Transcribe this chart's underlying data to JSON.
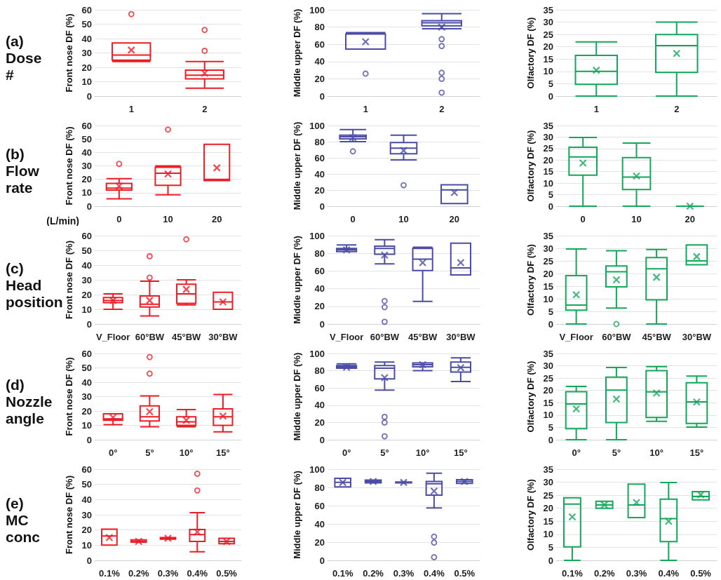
{
  "chart_data": [
    {
      "type": "box",
      "annotations": [
        "(a)\nDose\n#"
      ],
      "ylabel": "Front nose DF (%)",
      "categories": [
        "1",
        "2"
      ],
      "ylim": [
        0,
        60
      ],
      "yticks": [
        0,
        10,
        20,
        30,
        40,
        50,
        60
      ],
      "grid": "y",
      "marker": "cross",
      "series": [
        {
          "color": "#ee1c25",
          "boxes": [
            {
              "low": 24,
              "q1": 25,
              "median": 28.5,
              "q3": 37,
              "high": 37,
              "mean": 32,
              "outliers": [
                57
              ]
            },
            {
              "low": 5.5,
              "q1": 12,
              "median": 14.5,
              "q3": 18,
              "high": 24,
              "mean": 16,
              "outliers": [
                31.5,
                46
              ]
            }
          ]
        }
      ]
    },
    {
      "type": "box",
      "ylabel": "Middle upper DF (%)",
      "categories": [
        "1",
        "2"
      ],
      "ylim": [
        0,
        100
      ],
      "yticks": [
        0,
        20,
        40,
        60,
        80,
        100
      ],
      "grid": "y",
      "marker": "cross",
      "series": [
        {
          "color": "#4b4ba8",
          "boxes": [
            {
              "low": 54.5,
              "q1": 54.5,
              "median": 72,
              "q3": 72,
              "high": 73.5,
              "mean": 63,
              "outliers": [
                26
              ]
            },
            {
              "low": 78,
              "q1": 81.5,
              "median": 85,
              "q3": 87.5,
              "high": 95.5,
              "mean": 80,
              "outliers": [
                66,
                58,
                27,
                20,
                4
              ]
            }
          ]
        }
      ]
    },
    {
      "type": "box",
      "ylabel": "Olfactory DF (%)",
      "categories": [
        "1",
        "2"
      ],
      "ylim": [
        0,
        35
      ],
      "yticks": [
        0,
        5,
        10,
        15,
        20,
        25,
        30,
        35
      ],
      "grid": "y",
      "marker": "cross",
      "series": [
        {
          "color": "#12a85a",
          "boxes": [
            {
              "low": 0,
              "q1": 4.8,
              "median": 10,
              "q3": 16.5,
              "high": 22,
              "mean": 10.5
            },
            {
              "low": 0,
              "q1": 9.6,
              "median": 20.5,
              "q3": 25,
              "high": 30,
              "mean": 17.3
            }
          ]
        }
      ]
    },
    {
      "type": "box",
      "annotations": [
        "(b)\nFlow\nrate"
      ],
      "xlabel": "(L/min)",
      "ylabel": "Front nose DF (%)",
      "categories": [
        "0",
        "10",
        "20"
      ],
      "ylim": [
        0,
        60
      ],
      "yticks": [
        0,
        10,
        20,
        30,
        40,
        50,
        60
      ],
      "grid": "y",
      "marker": "cross",
      "series": [
        {
          "color": "#ee1c25",
          "boxes": [
            {
              "low": 5.5,
              "q1": 12,
              "median": 13.5,
              "q3": 17,
              "high": 20.5,
              "mean": 15,
              "outliers": [
                31.5
              ]
            },
            {
              "low": 8.5,
              "q1": 15.5,
              "median": 24.5,
              "q3": 29,
              "high": 30,
              "mean": 24,
              "outliers": [
                57
              ]
            },
            {
              "low": 19,
              "q1": 19,
              "median": 20,
              "q3": 46,
              "high": 46,
              "mean": 28.5
            }
          ]
        }
      ]
    },
    {
      "type": "box",
      "ylabel": "Middle upper DF (%)",
      "categories": [
        "0",
        "10",
        "20"
      ],
      "ylim": [
        0,
        100
      ],
      "yticks": [
        0,
        20,
        40,
        60,
        80,
        100
      ],
      "grid": "y",
      "marker": "cross",
      "series": [
        {
          "color": "#4b4ba8",
          "boxes": [
            {
              "low": 80,
              "q1": 83.5,
              "median": 86,
              "q3": 88,
              "high": 95,
              "mean": 85,
              "outliers": [
                68
              ]
            },
            {
              "low": 57.5,
              "q1": 65,
              "median": 72,
              "q3": 79,
              "high": 88,
              "mean": 69,
              "outliers": [
                26
              ]
            },
            {
              "low": 3.3,
              "q1": 3.3,
              "median": 20.3,
              "q3": 26.5,
              "high": 26.5,
              "mean": 17
            }
          ]
        }
      ]
    },
    {
      "type": "box",
      "ylabel": "Olfactory DF (%)",
      "categories": [
        "0",
        "10",
        "20"
      ],
      "ylim": [
        0,
        35
      ],
      "yticks": [
        0,
        5,
        10,
        15,
        20,
        25,
        30,
        35
      ],
      "grid": "y",
      "marker": "cross",
      "series": [
        {
          "color": "#12a85a",
          "boxes": [
            {
              "low": 0,
              "q1": 13.5,
              "median": 21.4,
              "q3": 25.6,
              "high": 29.8,
              "mean": 18.7
            },
            {
              "low": 0,
              "q1": 7.2,
              "median": 12.6,
              "q3": 21.1,
              "high": 27.4,
              "mean": 13.1
            },
            {
              "low": 0,
              "q1": 0,
              "median": 0,
              "q3": 0,
              "high": 0,
              "mean": 0
            }
          ]
        }
      ]
    },
    {
      "type": "box",
      "annotations": [
        "(c)\nHead\nposition"
      ],
      "ylabel": "Front nose DF (%)",
      "categories": [
        "V_Floor",
        "60°BW",
        "45°BW",
        "30°BW"
      ],
      "ylim": [
        0,
        60
      ],
      "yticks": [
        0,
        10,
        20,
        30,
        40,
        50,
        60
      ],
      "grid": "y",
      "marker": "cross",
      "series": [
        {
          "color": "#ee1c25",
          "boxes": [
            {
              "low": 10,
              "q1": 14.5,
              "median": 16,
              "q3": 18,
              "high": 20.5,
              "mean": 16
            },
            {
              "low": 5.5,
              "q1": 11.5,
              "median": 13.5,
              "q3": 19,
              "high": 29,
              "mean": 16,
              "outliers": [
                31.5,
                46
              ]
            },
            {
              "low": 13,
              "q1": 14,
              "median": 20.5,
              "q3": 27,
              "high": 30,
              "mean": 23.5,
              "outliers": [
                57.5
              ]
            },
            {
              "low": 10,
              "q1": 10,
              "median": 15,
              "q3": 21.5,
              "high": 21.5,
              "mean": 15
            }
          ]
        }
      ]
    },
    {
      "type": "box",
      "ylabel": "Middle upper DF (%)",
      "categories": [
        "V_Floor",
        "60°BW",
        "45°BW",
        "30°BW"
      ],
      "ylim": [
        0,
        100
      ],
      "yticks": [
        0,
        20,
        40,
        60,
        80,
        100
      ],
      "grid": "y",
      "marker": "cross",
      "series": [
        {
          "color": "#4b4ba8",
          "boxes": [
            {
              "low": 82,
              "q1": 82,
              "median": 84,
              "q3": 85.5,
              "high": 89.5,
              "mean": 84
            },
            {
              "low": 68,
              "q1": 79,
              "median": 85.5,
              "q3": 88,
              "high": 95.5,
              "mean": 78,
              "outliers": [
                26,
                19,
                2.5
              ]
            },
            {
              "low": 25.5,
              "q1": 60.5,
              "median": 73.5,
              "q3": 85.5,
              "high": 87,
              "mean": 69.5
            },
            {
              "low": 55.5,
              "q1": 55.5,
              "median": 63.5,
              "q3": 91.5,
              "high": 91.5,
              "mean": 69.5
            }
          ]
        }
      ]
    },
    {
      "type": "box",
      "ylabel": "Olfactory DF (%)",
      "categories": [
        "V_Floor",
        "60°BW",
        "45°BW",
        "30°BW"
      ],
      "ylim": [
        0,
        35
      ],
      "yticks": [
        0,
        5,
        10,
        15,
        20,
        25,
        30,
        35
      ],
      "grid": "y",
      "marker": "cross",
      "series": [
        {
          "color": "#12a85a",
          "boxes": [
            {
              "low": 0,
              "q1": 5.5,
              "median": 7.5,
              "q3": 19.2,
              "high": 29.7,
              "mean": 11.6
            },
            {
              "low": 6.3,
              "q1": 14.7,
              "median": 20.7,
              "q3": 23,
              "high": 29,
              "mean": 17.5,
              "outliers": [
                0
              ]
            },
            {
              "low": 0,
              "q1": 9.6,
              "median": 21.9,
              "q3": 26.3,
              "high": 29.5,
              "mean": 18.5
            },
            {
              "low": 23.5,
              "q1": 23.5,
              "median": 25,
              "q3": 31.3,
              "high": 31.3,
              "mean": 26.7
            }
          ]
        }
      ]
    },
    {
      "type": "box",
      "annotations": [
        "(d)\nNozzle\nangle"
      ],
      "ylabel": "Front nose DF (%)",
      "categories": [
        "0°",
        "5°",
        "10°",
        "15°"
      ],
      "ylim": [
        0,
        60
      ],
      "yticks": [
        0,
        10,
        20,
        30,
        40,
        50,
        60
      ],
      "grid": "y",
      "marker": "cross",
      "series": [
        {
          "color": "#ee1c25",
          "boxes": [
            {
              "low": 10.5,
              "q1": 13.5,
              "median": 14.5,
              "q3": 18,
              "high": 18,
              "mean": 15.5
            },
            {
              "low": 9,
              "q1": 13,
              "median": 16,
              "q3": 23.5,
              "high": 30.5,
              "mean": 19.5,
              "outliers": [
                57.5,
                46
              ]
            },
            {
              "low": 9,
              "q1": 10,
              "median": 12.5,
              "q3": 16,
              "high": 21,
              "mean": 13.5
            },
            {
              "low": 5.5,
              "q1": 10,
              "median": 16,
              "q3": 21.5,
              "high": 31.5,
              "mean": 16.5
            }
          ]
        }
      ]
    },
    {
      "type": "box",
      "ylabel": "Middle upper DF (%)",
      "categories": [
        "0°",
        "5°",
        "10°",
        "15°"
      ],
      "ylim": [
        0,
        100
      ],
      "yticks": [
        0,
        20,
        40,
        60,
        80,
        100
      ],
      "grid": "y",
      "marker": "cross",
      "series": [
        {
          "color": "#4b4ba8",
          "boxes": [
            {
              "low": 83,
              "q1": 83,
              "median": 84.5,
              "q3": 86,
              "high": 88,
              "mean": 84
            },
            {
              "low": 57.5,
              "q1": 70.5,
              "median": 83,
              "q3": 86,
              "high": 90,
              "mean": 72,
              "outliers": [
                26.5,
                20,
                4
              ]
            },
            {
              "low": 80,
              "q1": 84.5,
              "median": 87,
              "q3": 89,
              "high": 89,
              "mean": 87
            },
            {
              "low": 67.5,
              "q1": 78.5,
              "median": 84,
              "q3": 90,
              "high": 95,
              "mean": 83.5
            }
          ]
        }
      ]
    },
    {
      "type": "box",
      "ylabel": "Olfactory DF (%)",
      "categories": [
        "0°",
        "5°",
        "10°",
        "15°"
      ],
      "ylim": [
        0,
        35
      ],
      "yticks": [
        0,
        5,
        10,
        15,
        20,
        25,
        30,
        35
      ],
      "grid": "y",
      "marker": "cross",
      "series": [
        {
          "color": "#12a85a",
          "boxes": [
            {
              "low": 0,
              "q1": 4.5,
              "median": 14.5,
              "q3": 19.5,
              "high": 21.6,
              "mean": 12.5
            },
            {
              "low": 0,
              "q1": 7,
              "median": 20.1,
              "q3": 25.4,
              "high": 29.3,
              "mean": 16.5
            },
            {
              "low": 7.5,
              "q1": 9,
              "median": 19.4,
              "q3": 28,
              "high": 29.7,
              "mean": 18.9
            },
            {
              "low": 5.1,
              "q1": 6.6,
              "median": 15.4,
              "q3": 23.1,
              "high": 25.8,
              "mean": 15.3
            }
          ]
        }
      ]
    },
    {
      "type": "box",
      "annotations": [
        "(e)\nMC\nconc"
      ],
      "ylabel": "Front nose DF (%)",
      "categories": [
        "0.1%",
        "0.2%",
        "0.3%",
        "0.4%",
        "0.5%"
      ],
      "ylim": [
        0,
        60
      ],
      "yticks": [
        0,
        10,
        20,
        30,
        40,
        50,
        60
      ],
      "grid": "y",
      "marker": "cross",
      "series": [
        {
          "color": "#ee1c25",
          "boxes": [
            {
              "low": 10,
              "q1": 10,
              "median": 16,
              "q3": 20.5,
              "high": 20.5,
              "mean": 15
            },
            {
              "low": 12,
              "q1": 12,
              "median": 12.5,
              "q3": 13.5,
              "high": 13.5,
              "mean": 12.5
            },
            {
              "low": 14,
              "q1": 14,
              "median": 14.5,
              "q3": 15,
              "high": 15,
              "mean": 14.5
            },
            {
              "low": 5.7,
              "q1": 12.5,
              "median": 17,
              "q3": 20.3,
              "high": 31.4,
              "mean": 18.7,
              "outliers": [
                57,
                46
              ]
            },
            {
              "low": 11,
              "q1": 11,
              "median": 12.5,
              "q3": 14.5,
              "high": 14.5,
              "mean": 12.5
            }
          ]
        }
      ]
    },
    {
      "type": "box",
      "ylabel": "Middle upper DF (%)",
      "categories": [
        "0.1%",
        "0.2%",
        "0.3%",
        "0.4%",
        "0.5%"
      ],
      "ylim": [
        0,
        100
      ],
      "yticks": [
        0,
        20,
        40,
        60,
        80,
        100
      ],
      "grid": "y",
      "marker": "cross",
      "series": [
        {
          "color": "#4b4ba8",
          "boxes": [
            {
              "low": 80.5,
              "q1": 80.5,
              "median": 85.5,
              "q3": 90,
              "high": 90,
              "mean": 85.5
            },
            {
              "low": 85,
              "q1": 85,
              "median": 86.5,
              "q3": 88,
              "high": 88,
              "mean": 86.5
            },
            {
              "low": 85,
              "q1": 85,
              "median": 85.5,
              "q3": 86,
              "high": 86,
              "mean": 85.5
            },
            {
              "low": 57.5,
              "q1": 71.5,
              "median": 84,
              "q3": 86.5,
              "high": 95.5,
              "mean": 76,
              "outliers": [
                26,
                19.5,
                3.5
              ]
            },
            {
              "low": 84.5,
              "q1": 84.5,
              "median": 86.5,
              "q3": 88.5,
              "high": 88.5,
              "mean": 86.5
            }
          ]
        }
      ]
    },
    {
      "type": "box",
      "ylabel": "Olfactory DF (%)",
      "categories": [
        "0.1%",
        "0.2%",
        "0.3%",
        "0.4%",
        "0.5%"
      ],
      "ylim": [
        0,
        35
      ],
      "yticks": [
        0,
        5,
        10,
        15,
        20,
        25,
        30,
        35
      ],
      "grid": "y",
      "marker": "cross",
      "series": [
        {
          "color": "#12a85a",
          "boxes": [
            {
              "low": 0,
              "q1": 5.2,
              "median": 21.6,
              "q3": 24,
              "high": 24,
              "mean": 16.7
            },
            {
              "low": 20,
              "q1": 20,
              "median": 21.3,
              "q3": 22.7,
              "high": 22.7,
              "mean": 21.3
            },
            {
              "low": 16.4,
              "q1": 16.4,
              "median": 21.3,
              "q3": 29.3,
              "high": 29.3,
              "mean": 22.2
            },
            {
              "low": 0,
              "q1": 7.2,
              "median": 16,
              "q3": 23.5,
              "high": 29.9,
              "mean": 15
            },
            {
              "low": 23.2,
              "q1": 23.2,
              "median": 24.5,
              "q3": 26.4,
              "high": 26.4,
              "mean": 25.2
            }
          ]
        }
      ]
    }
  ]
}
